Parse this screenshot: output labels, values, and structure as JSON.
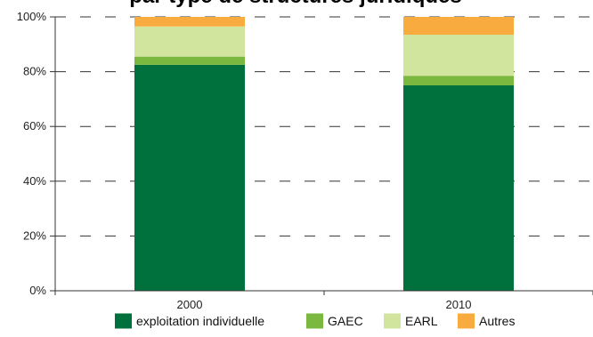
{
  "chart_data": {
    "type": "bar",
    "stacked": true,
    "percent": true,
    "title": "par type de structures juridiques",
    "xlabel": "",
    "ylabel": "",
    "categories": [
      "2000",
      "2010"
    ],
    "ylim": [
      0,
      100
    ],
    "yticks": [
      0,
      20,
      40,
      60,
      80,
      100
    ],
    "ytick_labels": [
      "0%",
      "20%",
      "40%",
      "60%",
      "80%",
      "100%"
    ],
    "grid": "dashed-horizontal",
    "legend_position": "bottom",
    "series": [
      {
        "name": "exploitation individuelle",
        "color": "#00703c",
        "values": [
          82.5,
          75
        ]
      },
      {
        "name": "GAEC",
        "color": "#7ab840",
        "values": [
          3,
          3.5
        ]
      },
      {
        "name": "EARL",
        "color": "#d2e59e",
        "values": [
          11,
          15
        ]
      },
      {
        "name": "Autres",
        "color": "#f8ac40",
        "values": [
          3.5,
          6.5
        ]
      }
    ]
  }
}
